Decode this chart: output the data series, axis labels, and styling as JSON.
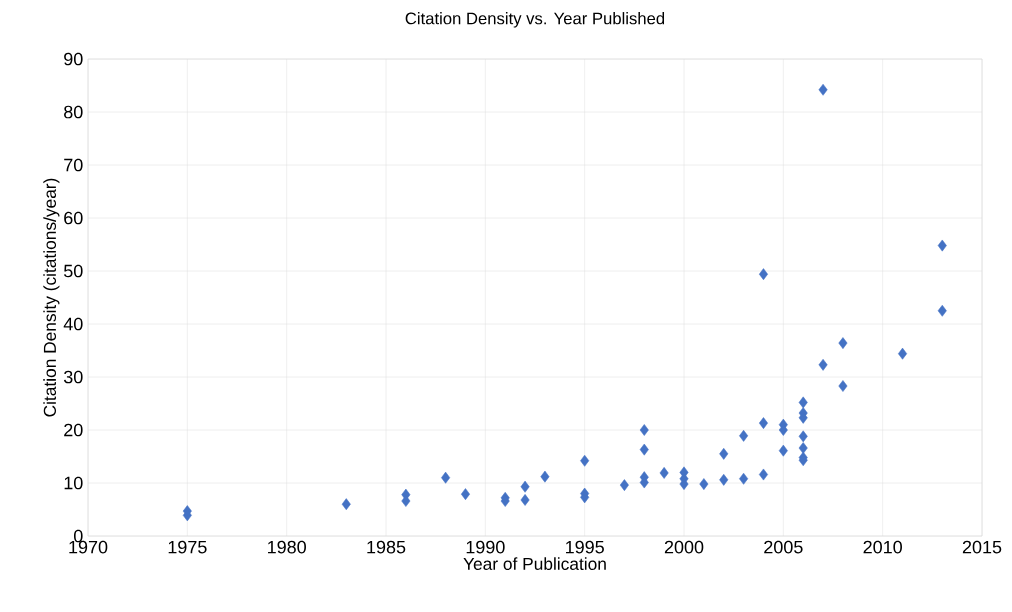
{
  "chart_data": {
    "type": "scatter",
    "title": "Citation Density vs. Year Published",
    "xlabel": "Year of Publication",
    "ylabel": "Citation Density (citations/year)",
    "x": [
      1975,
      1975,
      1983,
      1986,
      1986,
      1988,
      1989,
      1991,
      1991,
      1992,
      1992,
      1993,
      1995,
      1995,
      1995,
      1997,
      1998,
      1998,
      1998,
      1998,
      1999,
      2000,
      2000,
      2000,
      2001,
      2002,
      2002,
      2003,
      2003,
      2004,
      2004,
      2004,
      2005,
      2005,
      2005,
      2006,
      2006,
      2006,
      2006,
      2006,
      2006,
      2006,
      2007,
      2007,
      2008,
      2008,
      2011,
      2013,
      2013
    ],
    "series": [
      {
        "color": "#4472c4",
        "values": [
          4.7,
          3.9,
          6.0,
          7.8,
          6.6,
          11.0,
          7.9,
          7.2,
          6.6,
          9.3,
          6.8,
          11.2,
          14.2,
          8.0,
          7.3,
          9.6,
          20.0,
          16.3,
          11.1,
          10.1,
          11.9,
          12.0,
          10.8,
          9.8,
          9.8,
          15.5,
          10.6,
          18.9,
          10.8,
          49.4,
          21.3,
          11.6,
          21.0,
          20.0,
          16.1,
          25.2,
          23.2,
          22.3,
          18.8,
          16.6,
          14.8,
          14.3,
          84.2,
          32.3,
          36.4,
          28.3,
          34.4,
          54.8,
          42.5
        ]
      }
    ],
    "xlim": [
      1970,
      2015
    ],
    "xticks": [
      1970,
      1975,
      1980,
      1985,
      1990,
      1995,
      2000,
      2005,
      2010,
      2015
    ],
    "ylim": [
      0,
      90
    ],
    "yticks": [
      0,
      10,
      20,
      30,
      40,
      50,
      60,
      70,
      80,
      90
    ],
    "grid": true,
    "marker": "diamond"
  }
}
